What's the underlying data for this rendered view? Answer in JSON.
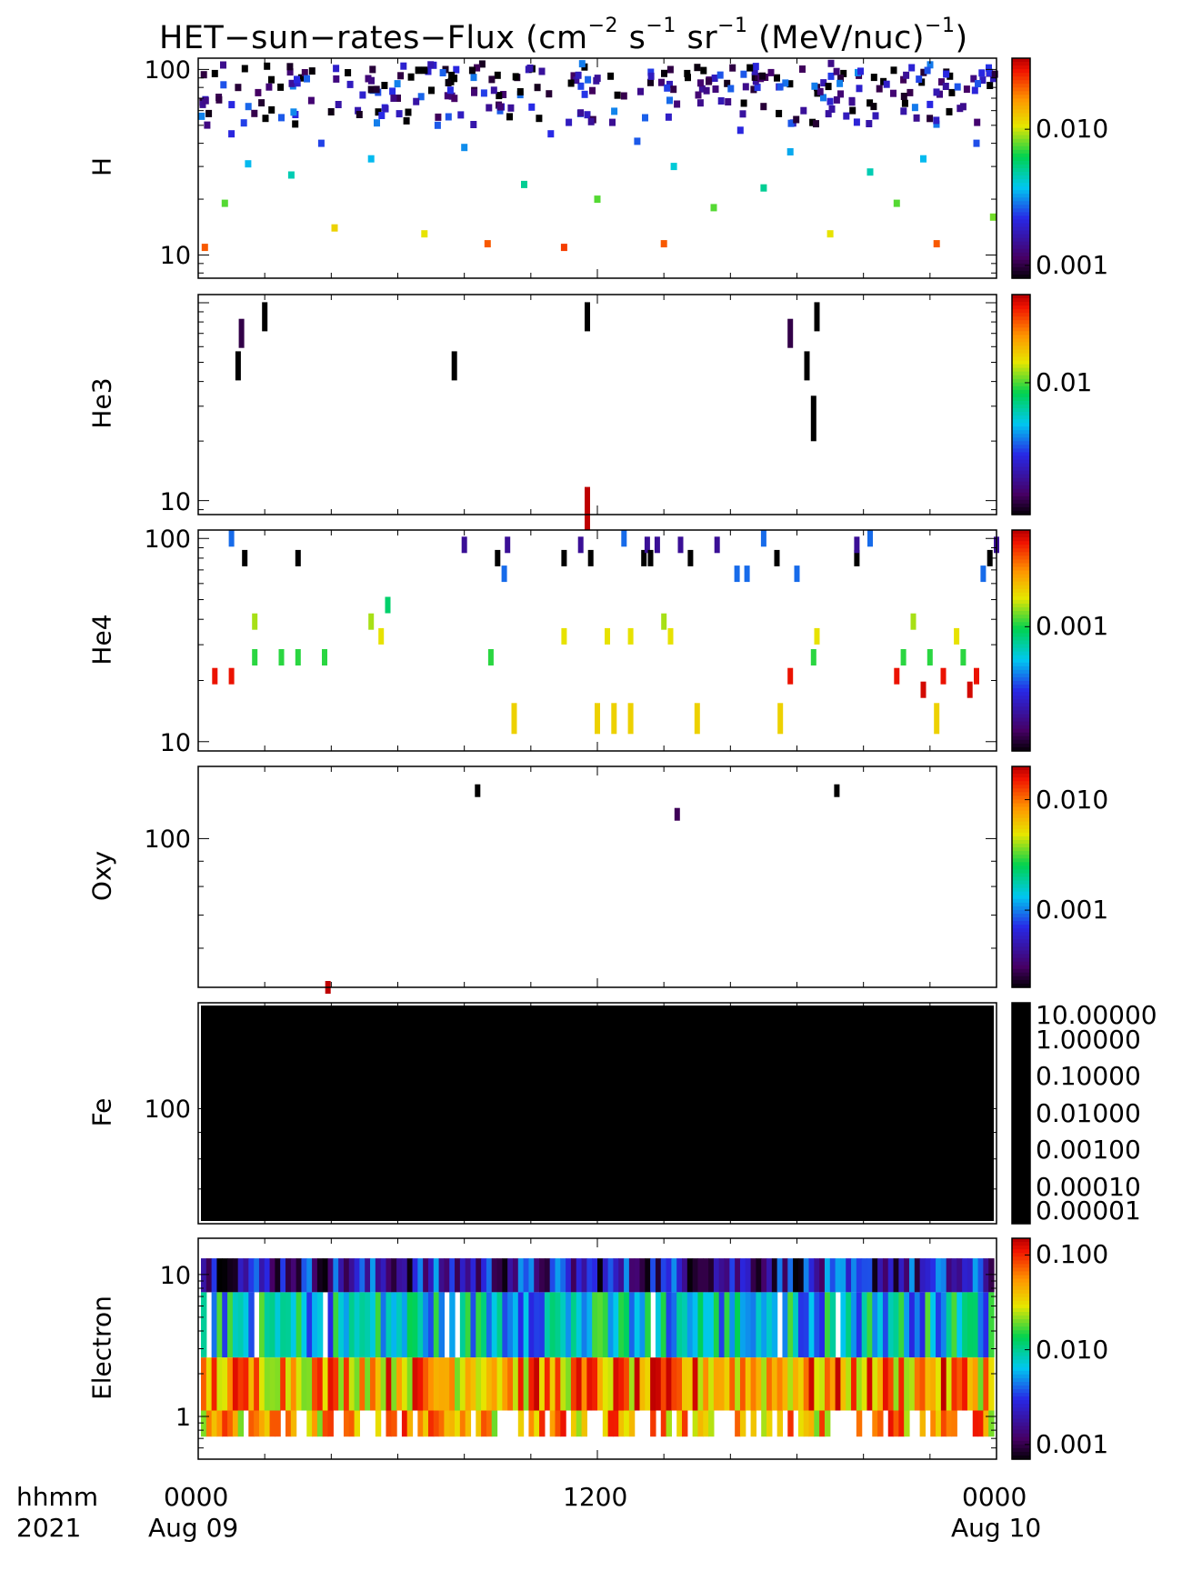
{
  "title": {
    "prefix": "HET−sun−rates−Flux (cm",
    "sup1": "−2",
    "mid1": " s",
    "sup2": "−1",
    "mid2": " sr",
    "sup3": "−1",
    "mid3": " (MeV/nuc)",
    "sup4": "−1",
    "suffix": ")"
  },
  "x_axis": {
    "left_row1": "hhmm",
    "left_row2": "2021",
    "ticks": [
      {
        "hour": 0,
        "row1": "0000",
        "row2": "Aug 09"
      },
      {
        "hour": 12,
        "row1": "1200",
        "row2": ""
      },
      {
        "hour": 24,
        "row1": "0000",
        "row2": "Aug 10"
      }
    ]
  },
  "chart_data": [
    {
      "type": "heatmap",
      "ylabel": "H",
      "ylog": true,
      "yrange": [
        7.5,
        115
      ],
      "yticks": [
        "10",
        "100"
      ],
      "colorbar": {
        "scale": "log",
        "range": [
          0.001,
          0.03
        ],
        "ticks": [
          "0.010",
          "0.001"
        ],
        "tick_values": [
          0.01,
          0.001
        ]
      },
      "cells": [
        [
          0.2,
          11,
          0.02
        ],
        [
          0.8,
          19,
          0.008
        ],
        [
          1.0,
          45,
          0.0025
        ],
        [
          0.5,
          95,
          0.0009
        ],
        [
          1.2,
          80,
          0.0012
        ],
        [
          1.5,
          31,
          0.004
        ],
        [
          1.8,
          75,
          0.0014
        ],
        [
          2.2,
          88,
          0.001
        ],
        [
          2.5,
          55,
          0.003
        ],
        [
          2.8,
          27,
          0.005
        ],
        [
          3.1,
          90,
          0.0008
        ],
        [
          3.4,
          68,
          0.0015
        ],
        [
          3.7,
          40,
          0.0028
        ],
        [
          4.1,
          14,
          0.012
        ],
        [
          4.5,
          96,
          0.0009
        ],
        [
          4.8,
          60,
          0.002
        ],
        [
          5.2,
          33,
          0.004
        ],
        [
          5.6,
          82,
          0.001
        ],
        [
          6.0,
          70,
          0.0013
        ],
        [
          6.4,
          91,
          0.0008
        ],
        [
          6.8,
          13,
          0.011
        ],
        [
          7.2,
          50,
          0.003
        ],
        [
          7.6,
          86,
          0.001
        ],
        [
          8.0,
          38,
          0.0035
        ],
        [
          8.3,
          77,
          0.0012
        ],
        [
          8.7,
          11.5,
          0.02
        ],
        [
          9.0,
          93,
          0.0009
        ],
        [
          9.4,
          62,
          0.0018
        ],
        [
          9.8,
          24,
          0.0055
        ],
        [
          10.2,
          80,
          0.0011
        ],
        [
          10.6,
          45,
          0.0026
        ],
        [
          11.0,
          11,
          0.022
        ],
        [
          11.3,
          88,
          0.001
        ],
        [
          11.7,
          57,
          0.0022
        ],
        [
          12.0,
          20,
          0.008
        ],
        [
          12.4,
          92,
          0.0009
        ],
        [
          12.8,
          72,
          0.0013
        ],
        [
          13.2,
          41,
          0.003
        ],
        [
          13.6,
          85,
          0.0011
        ],
        [
          14.0,
          11.5,
          0.02
        ],
        [
          14.3,
          30,
          0.0045
        ],
        [
          14.7,
          95,
          0.0008
        ],
        [
          15.1,
          66,
          0.0017
        ],
        [
          15.5,
          18,
          0.008
        ],
        [
          15.9,
          84,
          0.0011
        ],
        [
          16.3,
          47,
          0.0025
        ],
        [
          16.7,
          78,
          0.0012
        ],
        [
          17.0,
          23,
          0.0055
        ],
        [
          17.4,
          90,
          0.0009
        ],
        [
          17.8,
          36,
          0.0038
        ],
        [
          18.2,
          60,
          0.0018
        ],
        [
          18.6,
          80,
          0.0012
        ],
        [
          19.0,
          13,
          0.011
        ],
        [
          19.4,
          95,
          0.0008
        ],
        [
          19.8,
          52,
          0.0024
        ],
        [
          20.2,
          28,
          0.005
        ],
        [
          20.6,
          86,
          0.001
        ],
        [
          21.0,
          19,
          0.008
        ],
        [
          21.4,
          75,
          0.0013
        ],
        [
          21.8,
          33,
          0.004
        ],
        [
          22.2,
          11.5,
          0.02
        ],
        [
          22.6,
          92,
          0.0009
        ],
        [
          23.0,
          63,
          0.0017
        ],
        [
          23.4,
          40,
          0.0029
        ],
        [
          23.8,
          82,
          0.001
        ],
        [
          23.9,
          16,
          0.0085
        ]
      ]
    },
    {
      "type": "heatmap",
      "ylabel": "He3",
      "ylog": true,
      "yrange": [
        8.5,
        110
      ],
      "yticks": [
        "10"
      ],
      "colorbar": {
        "scale": "log",
        "range": [
          0.0009,
          0.05
        ],
        "ticks": [
          "0.01"
        ],
        "tick_values": [
          0.01
        ]
      },
      "cells": [
        [
          1.2,
          48,
          0.0008
        ],
        [
          1.3,
          70,
          0.0012
        ],
        [
          2.0,
          85,
          0.0009
        ],
        [
          7.7,
          48,
          0.0008
        ],
        [
          11.7,
          85,
          0.0009
        ],
        [
          11.7,
          9,
          0.05
        ],
        [
          17.8,
          70,
          0.0012
        ],
        [
          18.3,
          48,
          0.0008
        ],
        [
          18.5,
          26,
          0.0008
        ],
        [
          18.6,
          85,
          0.0009
        ]
      ]
    },
    {
      "type": "heatmap",
      "ylabel": "He4",
      "ylog": true,
      "yrange": [
        9,
        110
      ],
      "yticks": [
        "10",
        "100"
      ],
      "colorbar": {
        "scale": "log",
        "range": [
          0.0001,
          0.006
        ],
        "ticks": [
          "0.001"
        ],
        "tick_values": [
          0.001
        ]
      },
      "cells": [
        [
          0.5,
          21,
          0.005
        ],
        [
          1.0,
          21,
          0.005
        ],
        [
          1.0,
          100,
          0.0004
        ],
        [
          1.4,
          80,
          0.0001
        ],
        [
          1.7,
          39,
          0.0015
        ],
        [
          1.7,
          26,
          0.0011
        ],
        [
          2.5,
          26,
          0.0011
        ],
        [
          3.0,
          26,
          0.0011
        ],
        [
          3.0,
          80,
          0.0001
        ],
        [
          3.8,
          26,
          0.0011
        ],
        [
          5.2,
          39,
          0.0015
        ],
        [
          5.5,
          33,
          0.0018
        ],
        [
          5.7,
          47,
          0.0009
        ],
        [
          8.0,
          93,
          0.0002
        ],
        [
          8.8,
          26,
          0.0011
        ],
        [
          9.0,
          80,
          0.0001
        ],
        [
          9.2,
          67,
          0.0004
        ],
        [
          9.3,
          93,
          0.0002
        ],
        [
          9.5,
          13,
          0.002
        ],
        [
          11.0,
          33,
          0.0018
        ],
        [
          11.0,
          80,
          0.0001
        ],
        [
          11.5,
          93,
          0.0002
        ],
        [
          11.8,
          80,
          0.0001
        ],
        [
          12.0,
          13,
          0.002
        ],
        [
          12.3,
          33,
          0.0018
        ],
        [
          12.5,
          13,
          0.002
        ],
        [
          12.8,
          100,
          0.0004
        ],
        [
          13.0,
          33,
          0.0018
        ],
        [
          13.0,
          13,
          0.002
        ],
        [
          13.4,
          80,
          0.0001
        ],
        [
          13.5,
          93,
          0.0002
        ],
        [
          13.6,
          80,
          0.0001
        ],
        [
          13.8,
          93,
          0.0002
        ],
        [
          14.0,
          39,
          0.0015
        ],
        [
          14.2,
          33,
          0.0018
        ],
        [
          14.5,
          93,
          0.0002
        ],
        [
          14.8,
          80,
          0.0001
        ],
        [
          15.0,
          13,
          0.002
        ],
        [
          15.6,
          93,
          0.0002
        ],
        [
          16.2,
          67,
          0.0004
        ],
        [
          16.5,
          67,
          0.0004
        ],
        [
          17.0,
          100,
          0.0004
        ],
        [
          17.4,
          80,
          0.0001
        ],
        [
          17.5,
          13,
          0.002
        ],
        [
          17.8,
          21,
          0.005
        ],
        [
          18.0,
          67,
          0.0004
        ],
        [
          18.5,
          26,
          0.0011
        ],
        [
          18.6,
          33,
          0.0018
        ],
        [
          19.8,
          80,
          0.0001
        ],
        [
          19.8,
          93,
          0.0002
        ],
        [
          20.2,
          100,
          0.0004
        ],
        [
          21.0,
          21,
          0.005
        ],
        [
          21.2,
          26,
          0.0011
        ],
        [
          21.5,
          39,
          0.0015
        ],
        [
          21.8,
          18,
          0.0055
        ],
        [
          22.2,
          13,
          0.002
        ],
        [
          22.0,
          26,
          0.0011
        ],
        [
          22.4,
          21,
          0.005
        ],
        [
          22.8,
          33,
          0.0018
        ],
        [
          23.0,
          26,
          0.0011
        ],
        [
          23.2,
          18,
          0.0055
        ],
        [
          23.4,
          21,
          0.005
        ],
        [
          23.6,
          67,
          0.0004
        ],
        [
          23.8,
          80,
          0.0001
        ],
        [
          24.0,
          93,
          0.0002
        ]
      ]
    },
    {
      "type": "heatmap",
      "ylabel": "Oxy",
      "ylog": true,
      "yrange": [
        50,
        140
      ],
      "yticks": [
        "100"
      ],
      "colorbar": {
        "scale": "log",
        "range": [
          0.0002,
          0.02
        ],
        "ticks": [
          "0.010",
          "0.001"
        ],
        "tick_values": [
          0.01,
          0.001
        ]
      },
      "cells": [
        [
          8.4,
          125,
          0.0002
        ],
        [
          14.4,
          112,
          0.0003
        ],
        [
          19.2,
          125,
          0.0002
        ],
        [
          3.9,
          50,
          0.02
        ]
      ]
    },
    {
      "type": "heatmap",
      "ylabel": "Fe",
      "ylog": true,
      "yrange": [
        60,
        160
      ],
      "yticks": [
        "100"
      ],
      "colorbar": {
        "scale": "log",
        "range": [
          1e-05,
          10
        ],
        "ticks": [
          "10.00000",
          "1.00000",
          "0.10000",
          "0.01000",
          "0.00100",
          "0.00010",
          "0.00001"
        ],
        "tick_values": [
          10,
          1,
          0.1,
          0.01,
          0.001,
          0.0001,
          1e-05
        ],
        "solid_black": true
      },
      "fill": "all"
    },
    {
      "type": "heatmap",
      "ylabel": "Electron",
      "ylog": true,
      "yrange": [
        0.5,
        18
      ],
      "yticks": [
        "10",
        "1"
      ],
      "colorbar": {
        "scale": "log",
        "range": [
          0.0007,
          0.15
        ],
        "ticks": [
          "0.100",
          "0.010",
          "0.001"
        ],
        "tick_values": [
          0.1,
          0.01,
          0.001
        ]
      },
      "bands": [
        {
          "ylo": 7.5,
          "yhi": 13,
          "vmin": 0.0007,
          "vmax": 0.006
        },
        {
          "ylo": 2.6,
          "yhi": 7.5,
          "vmin": 0.003,
          "vmax": 0.02
        },
        {
          "ylo": 1.1,
          "yhi": 2.6,
          "vmin": 0.02,
          "vmax": 0.15
        },
        {
          "ylo": 0.72,
          "yhi": 1.1,
          "vmin": 0.02,
          "vmax": 0.12,
          "sparse": true
        }
      ]
    }
  ]
}
